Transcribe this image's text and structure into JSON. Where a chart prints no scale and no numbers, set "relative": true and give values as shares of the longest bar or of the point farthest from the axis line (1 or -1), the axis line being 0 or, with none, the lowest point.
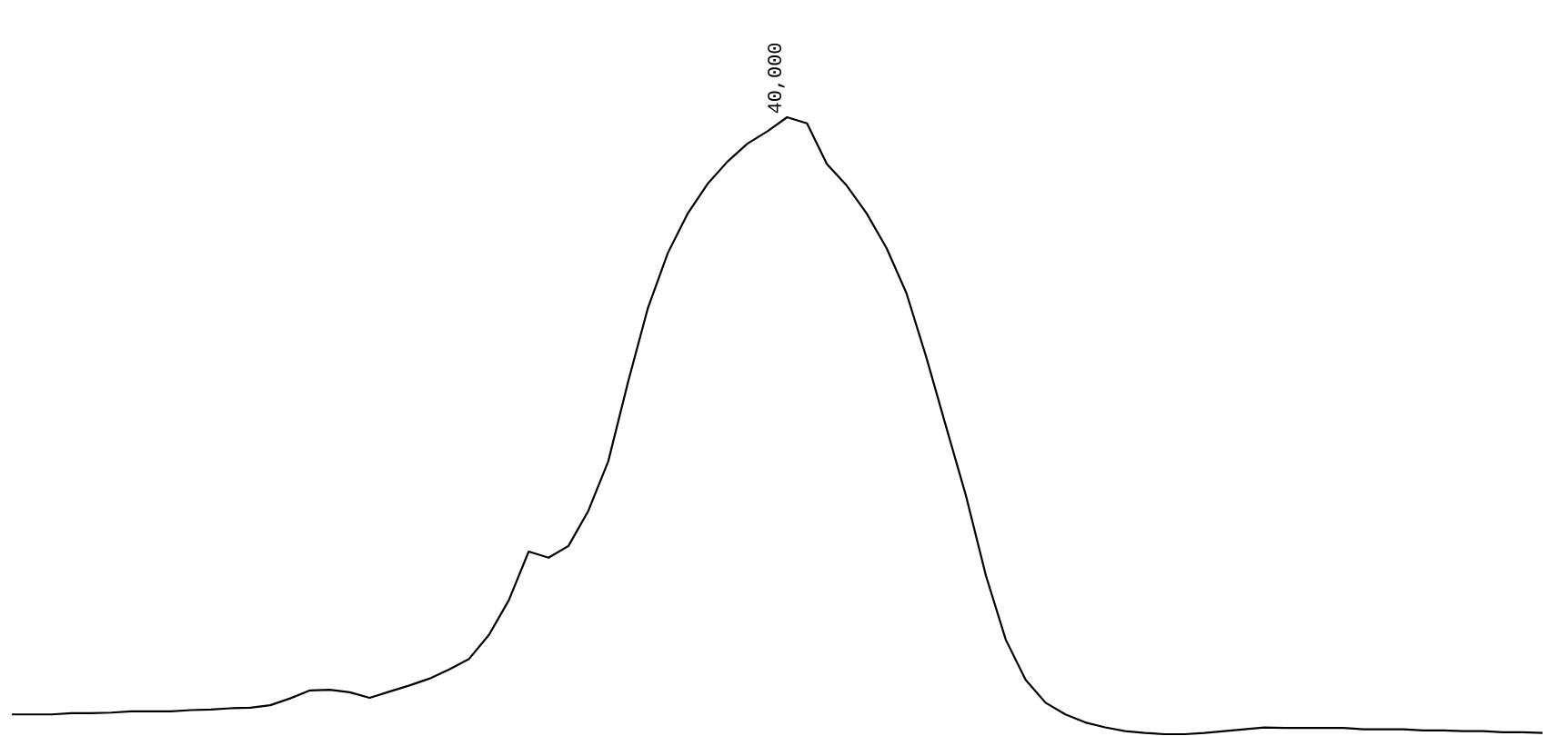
{
  "chart_data": {
    "type": "line",
    "relative": true,
    "color": "#000000",
    "categories": [
      null,
      null,
      null,
      null,
      null,
      null,
      null,
      null,
      null,
      null,
      null,
      null,
      null,
      null,
      null,
      null,
      null,
      null,
      null,
      null,
      null,
      null,
      null,
      null,
      null,
      null,
      null,
      null,
      null,
      null,
      null,
      null,
      null,
      null,
      null,
      null,
      null,
      null,
      null,
      null,
      null,
      null,
      null,
      null,
      null,
      null,
      null,
      null,
      null,
      null,
      null,
      null,
      null,
      null,
      null,
      null,
      null,
      null,
      null,
      null,
      null,
      null,
      null,
      null,
      null,
      null,
      null,
      null,
      null,
      null,
      null,
      null,
      null,
      null,
      null,
      null,
      null,
      null
    ],
    "values": [
      0.032,
      0.032,
      0.032,
      0.034,
      0.034,
      0.035,
      0.037,
      0.037,
      0.037,
      0.039,
      0.04,
      0.042,
      0.043,
      0.047,
      0.058,
      0.071,
      0.072,
      0.068,
      0.059,
      0.069,
      0.079,
      0.09,
      0.105,
      0.122,
      0.161,
      0.217,
      0.296,
      0.286,
      0.305,
      0.362,
      0.442,
      0.571,
      0.691,
      0.78,
      0.844,
      0.892,
      0.928,
      0.957,
      0.977,
      1.0,
      0.99,
      0.924,
      0.889,
      0.844,
      0.788,
      0.715,
      0.611,
      0.498,
      0.386,
      0.257,
      0.153,
      0.088,
      0.051,
      0.032,
      0.019,
      0.011,
      0.005,
      0.002,
      0,
      0,
      0.002,
      0.005,
      0.008,
      0.011,
      0.01,
      0.01,
      0.01,
      0.01,
      0.008,
      0.008,
      0.008,
      0.006,
      0.006,
      0.005,
      0.005,
      0.003,
      0.003,
      0.002
    ],
    "annotations": [
      "40,000"
    ]
  }
}
